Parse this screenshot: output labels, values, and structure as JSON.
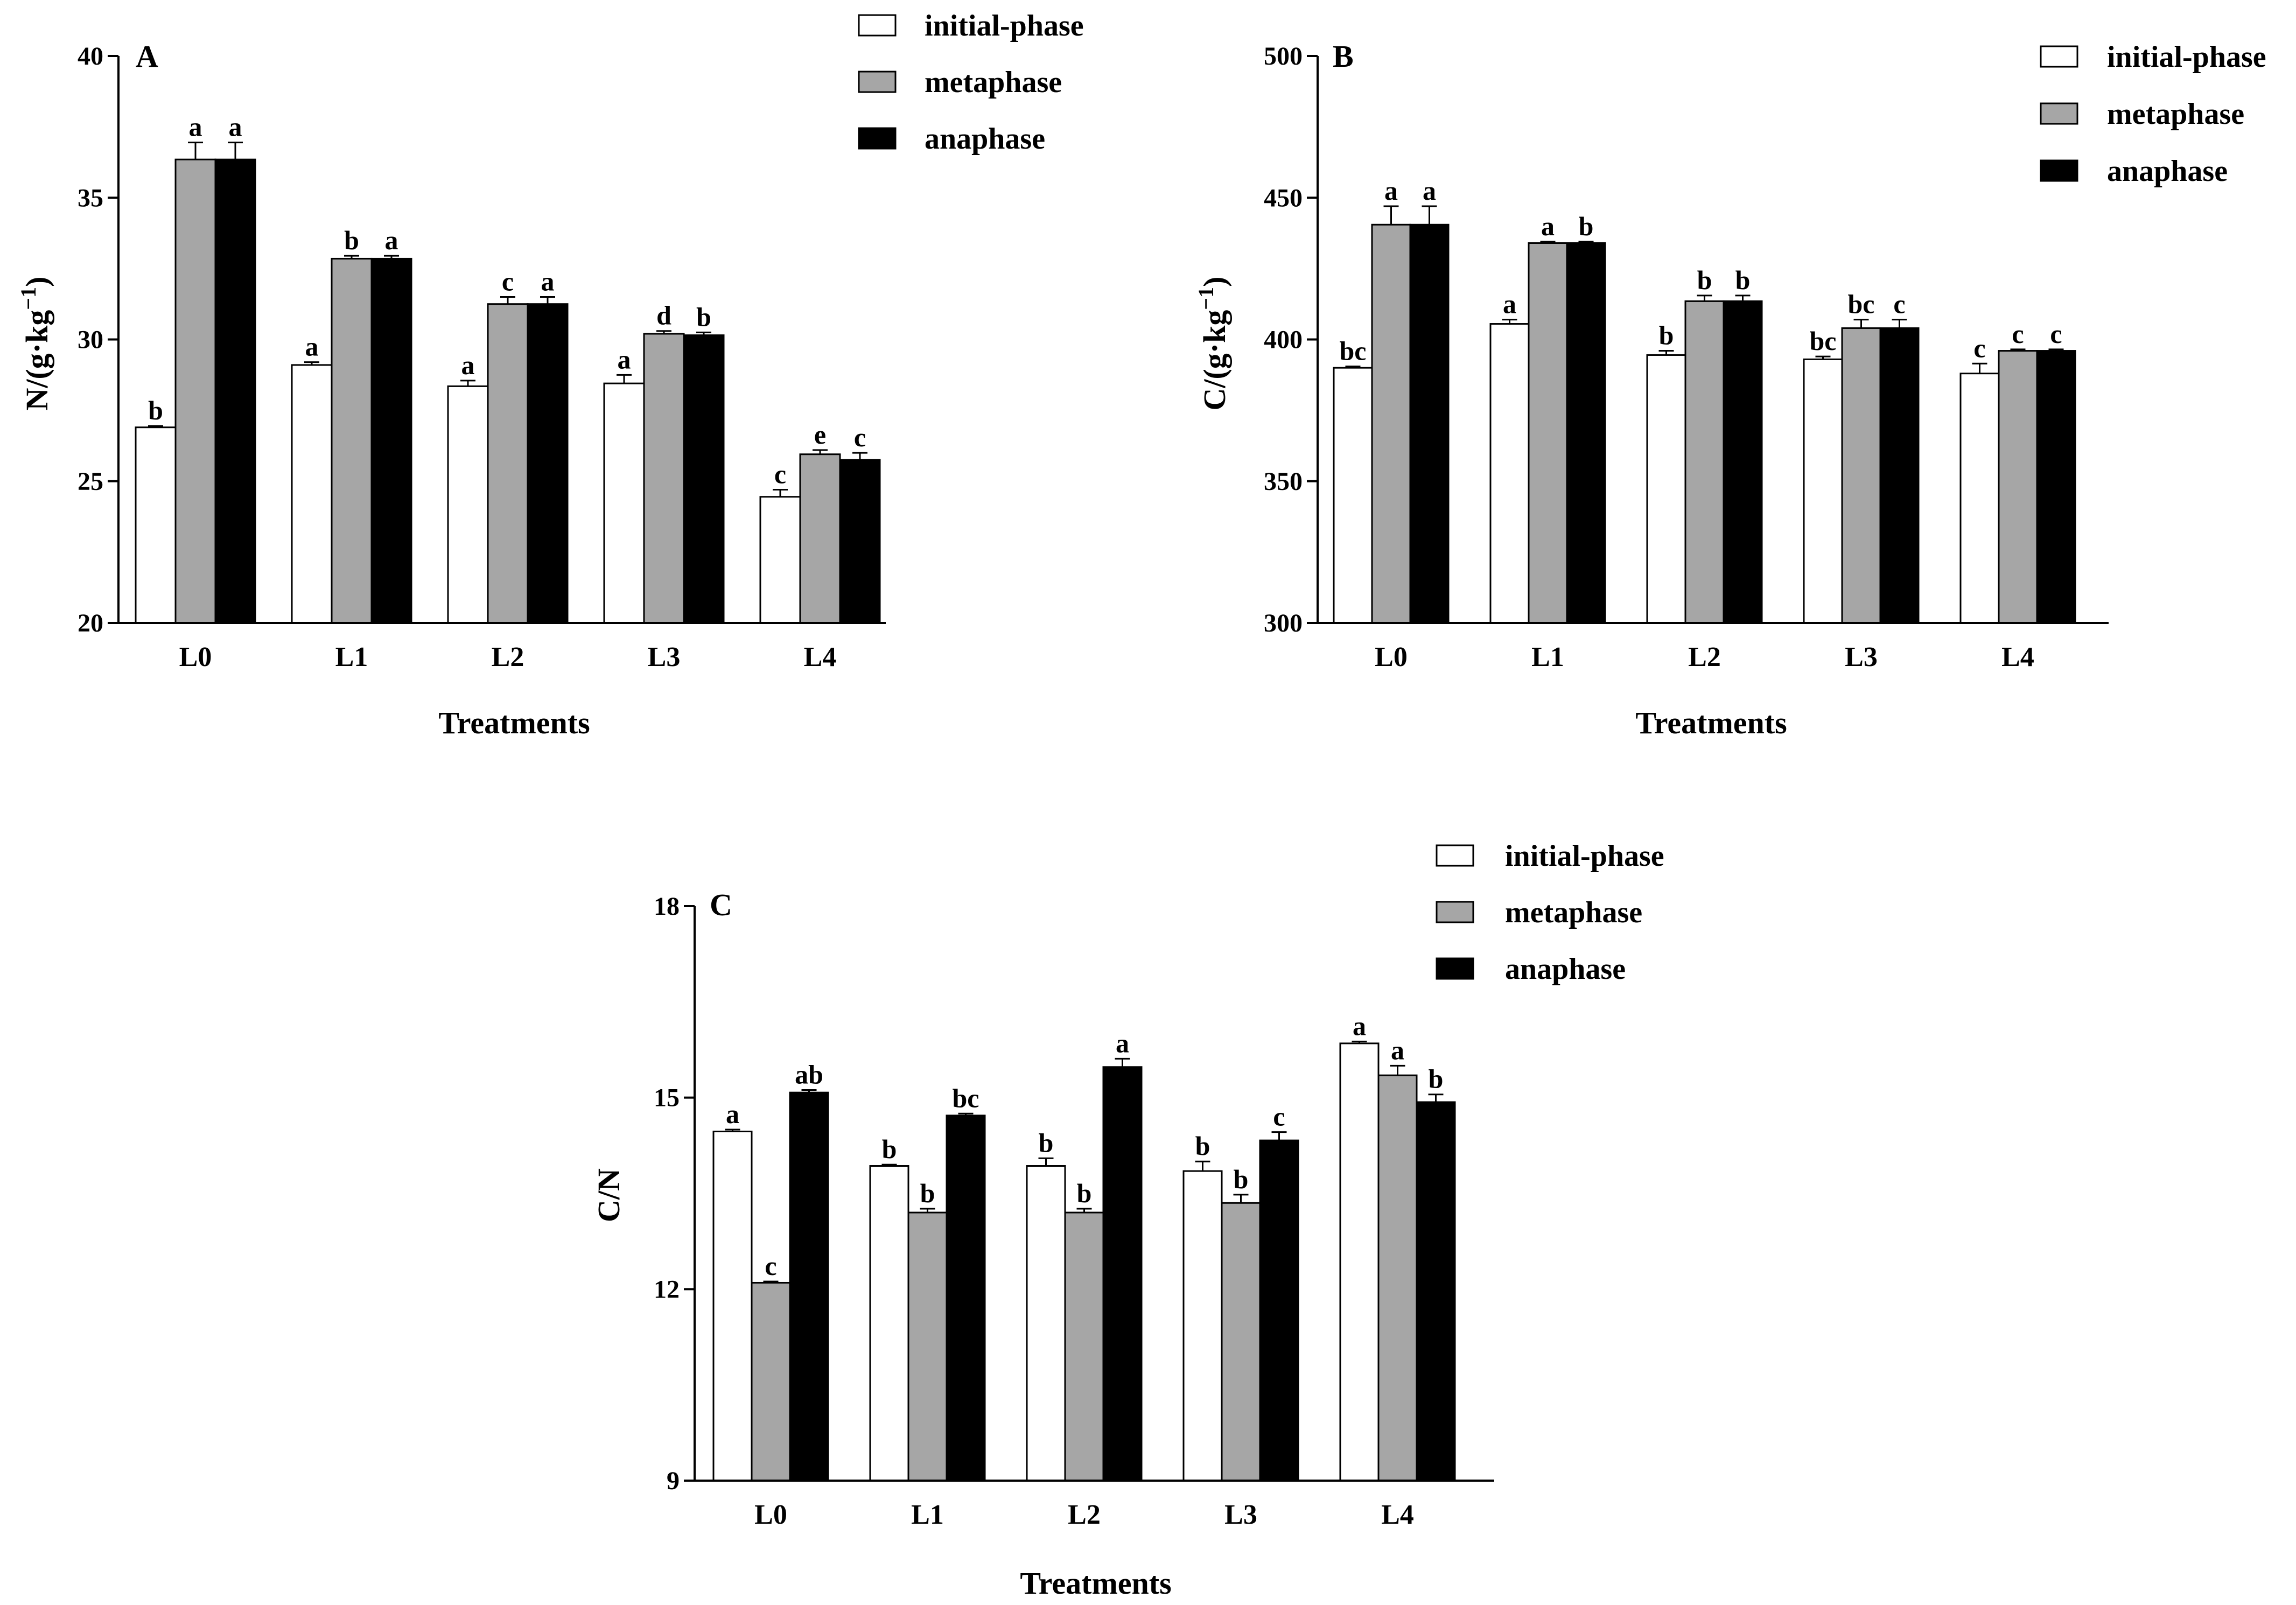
{
  "series_colors": {
    "initial-phase": "#ffffff",
    "metaphase": "#a6a6a6",
    "anaphase": "#000000"
  },
  "chart_data": [
    {
      "type": "bar",
      "panel_label": "A",
      "xlabel": "Treatments",
      "ylabel_main": "N/(g·kg",
      "ylabel_sup": "−1",
      "ylabel_tail": ")",
      "ylim": [
        20,
        40
      ],
      "yticks": [
        20,
        25,
        30,
        35,
        40
      ],
      "categories": [
        "L0",
        "L1",
        "L2",
        "L3",
        "L4"
      ],
      "legend": [
        "initial-phase",
        "metaphase",
        "anaphase"
      ],
      "series": [
        {
          "name": "initial-phase",
          "values": [
            26.9,
            29.1,
            28.35,
            28.45,
            24.45
          ],
          "errors": [
            0.05,
            0.1,
            0.2,
            0.3,
            0.25
          ],
          "labels": [
            "b",
            "a",
            "a",
            "a",
            "c"
          ]
        },
        {
          "name": "metaphase",
          "values": [
            36.35,
            32.85,
            31.25,
            30.2,
            25.95
          ],
          "errors": [
            0.6,
            0.1,
            0.25,
            0.1,
            0.15
          ],
          "labels": [
            "a",
            "b",
            "c",
            "d",
            "e"
          ]
        },
        {
          "name": "anaphase",
          "values": [
            36.35,
            32.85,
            31.25,
            30.15,
            25.75
          ],
          "errors": [
            0.6,
            0.1,
            0.25,
            0.1,
            0.25
          ],
          "labels": [
            "a",
            "a",
            "a",
            "b",
            "c"
          ]
        }
      ]
    },
    {
      "type": "bar",
      "panel_label": "B",
      "xlabel": "Treatments",
      "ylabel_main": "C/(g·kg",
      "ylabel_sup": "−1",
      "ylabel_tail": ")",
      "ylim": [
        300,
        500
      ],
      "yticks": [
        300,
        350,
        400,
        450,
        500
      ],
      "categories": [
        "L0",
        "L1",
        "L2",
        "L3",
        "L4"
      ],
      "legend": [
        "initial-phase",
        "metaphase",
        "anaphase"
      ],
      "series": [
        {
          "name": "initial-phase",
          "values": [
            390,
            405.5,
            394.5,
            393,
            388
          ],
          "errors": [
            0.5,
            1.5,
            1.5,
            1,
            3.5
          ],
          "labels": [
            "bc",
            "a",
            "b",
            "bc",
            "c"
          ]
        },
        {
          "name": "metaphase",
          "values": [
            440.5,
            434,
            413.5,
            404,
            396
          ],
          "errors": [
            6.5,
            0.5,
            2,
            3,
            0.5
          ],
          "labels": [
            "a",
            "a",
            "b",
            "bc",
            "c"
          ]
        },
        {
          "name": "anaphase",
          "values": [
            440.5,
            434,
            413.5,
            404,
            396
          ],
          "errors": [
            6.5,
            0.5,
            2,
            3,
            0.5
          ],
          "labels": [
            "a",
            "b",
            "b",
            "c",
            "c"
          ]
        }
      ]
    },
    {
      "type": "bar",
      "panel_label": "C",
      "xlabel": "Treatments",
      "ylabel_main": "C/N",
      "ylabel_sup": "",
      "ylabel_tail": "",
      "ylim": [
        9,
        18
      ],
      "yticks": [
        9,
        12,
        15,
        18
      ],
      "categories": [
        "L0",
        "L1",
        "L2",
        "L3",
        "L4"
      ],
      "legend": [
        "initial-phase",
        "metaphase",
        "anaphase"
      ],
      "series": [
        {
          "name": "initial-phase",
          "values": [
            14.47,
            13.93,
            13.93,
            13.85,
            15.85
          ],
          "errors": [
            0.03,
            0.02,
            0.12,
            0.15,
            0.03
          ],
          "labels": [
            "a",
            "b",
            "b",
            "b",
            "a"
          ]
        },
        {
          "name": "metaphase",
          "values": [
            12.1,
            13.2,
            13.2,
            13.35,
            15.35
          ],
          "errors": [
            0.02,
            0.06,
            0.06,
            0.13,
            0.15
          ],
          "labels": [
            "c",
            "b",
            "b",
            "b",
            "a"
          ]
        },
        {
          "name": "anaphase",
          "values": [
            15.08,
            14.72,
            15.48,
            14.33,
            14.93
          ],
          "errors": [
            0.04,
            0.03,
            0.13,
            0.13,
            0.12
          ],
          "labels": [
            "ab",
            "bc",
            "a",
            "c",
            "b"
          ]
        }
      ]
    }
  ]
}
